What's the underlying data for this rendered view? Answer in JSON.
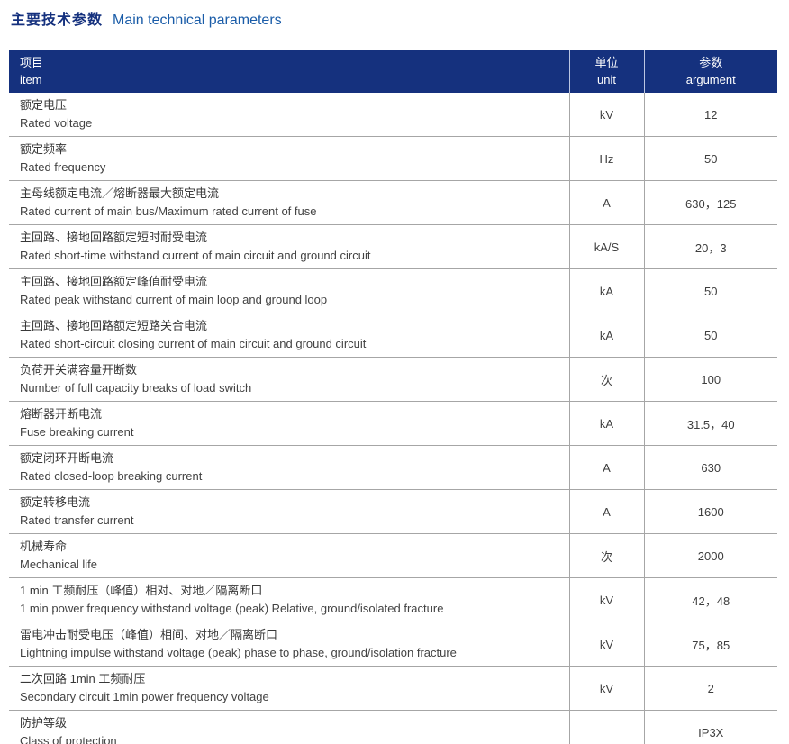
{
  "title": {
    "zh": "主要技术参数",
    "en": "Main technical parameters"
  },
  "colors": {
    "header_bg": "#15317E",
    "title_zh": "#15317E",
    "title_en": "#1A5CA8",
    "body_text": "#3D3D3D",
    "grid_line": "#A6A6A6",
    "header_divider": "#BCC6E2"
  },
  "table": {
    "headers": [
      {
        "zh": "项目",
        "en": "item"
      },
      {
        "zh": "单位",
        "en": "unit"
      },
      {
        "zh": "参数",
        "en": "argument"
      }
    ],
    "rows": [
      {
        "zh": "额定电压",
        "en": "Rated voltage",
        "unit": "kV",
        "value": "12"
      },
      {
        "zh": "额定频率",
        "en": "Rated frequency",
        "unit": "Hz",
        "value": "50"
      },
      {
        "zh": "主母线额定电流／熔断器最大额定电流",
        "en": "Rated current of main bus/Maximum rated current of fuse",
        "unit": "A",
        "value": "630，125"
      },
      {
        "zh": "主回路、接地回路额定短时耐受电流",
        "en": "Rated short-time withstand current of main circuit and ground circuit",
        "unit": "kA/S",
        "value": "20，3"
      },
      {
        "zh": "主回路、接地回路额定峰值耐受电流",
        "en": "Rated peak withstand current of main loop and ground loop",
        "unit": "kA",
        "value": "50"
      },
      {
        "zh": "主回路、接地回路额定短路关合电流",
        "en": "Rated short-circuit closing current of main circuit and ground circuit",
        "unit": "kA",
        "value": "50"
      },
      {
        "zh": "负荷开关满容量开断数",
        "en": "Number of full capacity breaks of load switch",
        "unit": "次",
        "value": "100"
      },
      {
        "zh": "熔断器开断电流",
        "en": "Fuse breaking current",
        "unit": "kA",
        "value": "31.5，40"
      },
      {
        "zh": "额定闭环开断电流",
        "en": "Rated closed-loop breaking current",
        "unit": "A",
        "value": "630"
      },
      {
        "zh": "额定转移电流",
        "en": "Rated transfer current",
        "unit": "A",
        "value": "1600"
      },
      {
        "zh": "机械寿命",
        "en": "Mechanical life",
        "unit": "次",
        "value": "2000"
      },
      {
        "zh": "1 min 工频耐压（峰值）相对、对地／隔离断口",
        "en": "1 min power frequency withstand voltage (peak) Relative, ground/isolated fracture",
        "unit": "kV",
        "value": "42，48"
      },
      {
        "zh": "雷电冲击耐受电压（峰值）相间、对地／隔离断口",
        "en": "Lightning impulse withstand voltage (peak) phase to phase, ground/isolation fracture",
        "unit": "kV",
        "value": "75，85"
      },
      {
        "zh": "二次回路 1min 工频耐压",
        "en": "Secondary circuit 1min power frequency voltage",
        "unit": "kV",
        "value": "2"
      },
      {
        "zh": "防护等级",
        "en": "Class of protection",
        "unit": "",
        "value": "IP3X"
      }
    ]
  }
}
